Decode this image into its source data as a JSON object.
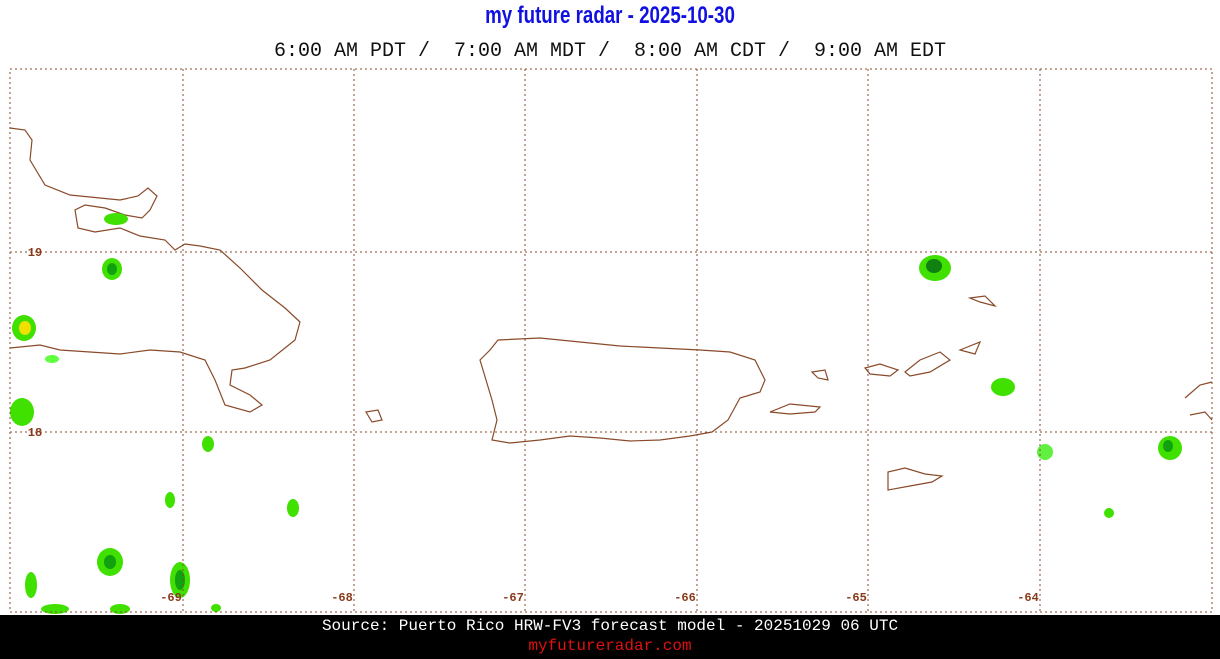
{
  "header": {
    "title": "my future radar - 2025-10-30",
    "times": "6:00 AM PDT /  7:00 AM MDT /  8:00 AM CDT /  9:00 AM EDT"
  },
  "map": {
    "lon_labels": [
      "-69",
      "-68",
      "-67",
      "-66",
      "-65",
      "-64"
    ],
    "lat_labels": [
      "19",
      "18"
    ]
  },
  "footer": {
    "source": "Source: Puerto Rico HRW-FV3 forecast model - 20251029 06 UTC",
    "url": "myfutureradar.com"
  }
}
